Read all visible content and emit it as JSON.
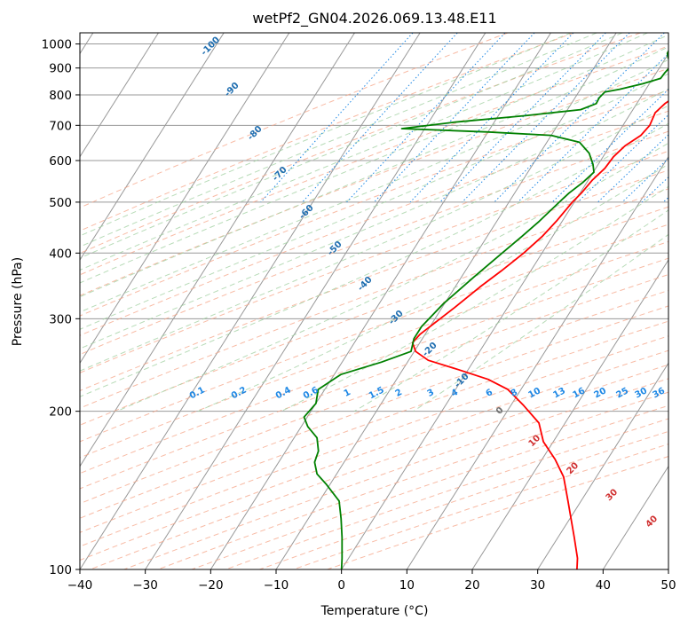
{
  "chart_data": {
    "type": "line",
    "title": "wetPf2_GN04.2026.069.13.48.E11",
    "xlabel": "Temperature (°C)",
    "ylabel": "Pressure (hPa)",
    "xlim": [
      -40,
      50
    ],
    "ylim": [
      1050,
      100
    ],
    "y_scale": "log",
    "grid": true,
    "x_ticks": [
      "−40",
      "−30",
      "−20",
      "−10",
      "0",
      "10",
      "20",
      "30",
      "40",
      "50"
    ],
    "y_ticks": [
      "1000",
      "900",
      "800",
      "700",
      "600",
      "500",
      "400",
      "300",
      "200",
      "100"
    ],
    "series": [
      {
        "color": "#ff0000",
        "points": [
          [
            2,
            1000
          ],
          [
            1.8,
            960
          ],
          [
            2.1,
            920
          ],
          [
            2.6,
            900
          ],
          [
            3.2,
            880
          ],
          [
            3.9,
            860
          ],
          [
            3.2,
            845
          ],
          [
            4.1,
            830
          ],
          [
            5.4,
            800
          ],
          [
            4.3,
            770
          ],
          [
            3.7,
            740
          ],
          [
            4.1,
            700
          ],
          [
            3.7,
            670
          ],
          [
            2.3,
            640
          ],
          [
            1.6,
            610
          ],
          [
            1.4,
            580
          ],
          [
            0.6,
            550
          ],
          [
            0.2,
            520
          ],
          [
            -0.3,
            500
          ],
          [
            -0.9,
            460
          ],
          [
            -1.6,
            430
          ],
          [
            -2.8,
            400
          ],
          [
            -4.5,
            370
          ],
          [
            -6.2,
            345
          ],
          [
            -8.1,
            315
          ],
          [
            -9.6,
            295
          ],
          [
            -10.8,
            280
          ],
          [
            -11.1,
            270
          ],
          [
            -9.8,
            260
          ],
          [
            -7,
            250
          ],
          [
            -1.5,
            240
          ],
          [
            4,
            230
          ],
          [
            8,
            220
          ],
          [
            12,
            205
          ],
          [
            16,
            190
          ],
          [
            18.5,
            175
          ],
          [
            22,
            162
          ],
          [
            25,
            150
          ],
          [
            28,
            135
          ],
          [
            32.5,
            115
          ],
          [
            35,
            105
          ],
          [
            36,
            100
          ]
        ]
      },
      {
        "color": "#008000",
        "points": [
          [
            0,
            1000
          ],
          [
            -0.3,
            980
          ],
          [
            -0.2,
            960
          ],
          [
            0.4,
            940
          ],
          [
            1.4,
            920
          ],
          [
            1.5,
            900
          ],
          [
            1.3,
            880
          ],
          [
            1.2,
            860
          ],
          [
            -1,
            840
          ],
          [
            -4,
            820
          ],
          [
            -6,
            810
          ],
          [
            -6.3,
            790
          ],
          [
            -6.2,
            770
          ],
          [
            -8,
            750
          ],
          [
            -16,
            730
          ],
          [
            -26,
            710
          ],
          [
            -33.5,
            690
          ],
          [
            -20,
            680
          ],
          [
            -10,
            670
          ],
          [
            -5,
            650
          ],
          [
            -2.5,
            620
          ],
          [
            -0.8,
            590
          ],
          [
            0.1,
            570
          ],
          [
            -0.6,
            545
          ],
          [
            -1.7,
            520
          ],
          [
            -2.3,
            500
          ],
          [
            -3.5,
            460
          ],
          [
            -4.7,
            430
          ],
          [
            -6.1,
            400
          ],
          [
            -8.1,
            360
          ],
          [
            -10.2,
            320
          ],
          [
            -11.3,
            290
          ],
          [
            -11.3,
            275
          ],
          [
            -10.5,
            260
          ],
          [
            -14,
            248
          ],
          [
            -19,
            235
          ],
          [
            -21,
            220
          ],
          [
            -20,
            207
          ],
          [
            -20.5,
            195
          ],
          [
            -19,
            187
          ],
          [
            -16.5,
            178
          ],
          [
            -15,
            168
          ],
          [
            -14.5,
            160
          ],
          [
            -13,
            152
          ],
          [
            -10.5,
            145
          ],
          [
            -7,
            135
          ],
          [
            -5,
            125
          ],
          [
            -3,
            115
          ],
          [
            -1,
            105
          ],
          [
            0,
            100
          ]
        ]
      }
    ],
    "dry_adiabat_labels": [
      "-100",
      "-90",
      "-80",
      "-70",
      "-60",
      "-50",
      "-40",
      "-30",
      "-20",
      "-10"
    ],
    "moist_adiabat_labels": [
      "0",
      "10",
      "20",
      "30",
      "40"
    ],
    "mixing_ratio_labels": [
      "0.1",
      "0.2",
      "0.4",
      "0.6",
      "1",
      "1.5",
      "2",
      "3",
      "4",
      "6",
      "8",
      "10",
      "13",
      "16",
      "20",
      "25",
      "30",
      "36"
    ],
    "colors": {
      "temperature": "#ff0000",
      "dewpoint": "#008000",
      "isotherm": "#999999",
      "dry_adiabat": "#f6a487",
      "moist_adiabat": "#9fcf9f",
      "mixing_ratio": "#1e88e5",
      "dry_label": "#1f6eb0",
      "moist_label": "#d03030"
    }
  }
}
